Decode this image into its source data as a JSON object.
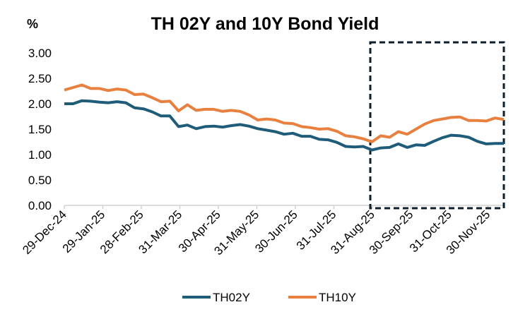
{
  "chart_data": {
    "type": "line",
    "title": "TH 02Y and 10Y Bond Yield",
    "ylabel": "%",
    "xlabel": "",
    "ylim": [
      0,
      3
    ],
    "yticks": [
      "0.00",
      "0.50",
      "1.00",
      "1.50",
      "2.00",
      "2.50",
      "3.00"
    ],
    "xtick_labels": [
      "29-Dec-24",
      "29-Jan-25",
      "28-Feb-25",
      "31-Mar-25",
      "30-Apr-25",
      "31-May-25",
      "30-Jun-25",
      "31-Jul-25",
      "31-Aug-25",
      "30-Sep-25",
      "31-Oct-25",
      "30-Nov-25"
    ],
    "grid": false,
    "legend_position": "bottom",
    "highlight_from": "31-Aug-25",
    "series": [
      {
        "name": "TH02Y",
        "color": "#1F5C7A",
        "values": [
          2.0,
          2.0,
          2.06,
          2.05,
          2.03,
          2.02,
          2.04,
          2.02,
          1.92,
          1.9,
          1.84,
          1.76,
          1.76,
          1.55,
          1.58,
          1.51,
          1.55,
          1.56,
          1.54,
          1.57,
          1.59,
          1.56,
          1.51,
          1.48,
          1.45,
          1.4,
          1.42,
          1.36,
          1.36,
          1.3,
          1.29,
          1.24,
          1.16,
          1.15,
          1.16,
          1.09,
          1.13,
          1.14,
          1.21,
          1.14,
          1.19,
          1.18,
          1.26,
          1.33,
          1.38,
          1.37,
          1.34,
          1.26,
          1.21,
          1.22,
          1.22
        ]
      },
      {
        "name": "TH10Y",
        "color": "#E8803F",
        "values": [
          2.27,
          2.32,
          2.37,
          2.3,
          2.3,
          2.26,
          2.29,
          2.27,
          2.18,
          2.19,
          2.12,
          2.04,
          2.05,
          1.86,
          1.98,
          1.87,
          1.89,
          1.89,
          1.85,
          1.87,
          1.85,
          1.78,
          1.68,
          1.7,
          1.68,
          1.62,
          1.61,
          1.55,
          1.53,
          1.5,
          1.51,
          1.46,
          1.37,
          1.35,
          1.31,
          1.25,
          1.37,
          1.34,
          1.45,
          1.4,
          1.5,
          1.6,
          1.67,
          1.7,
          1.73,
          1.74,
          1.67,
          1.67,
          1.66,
          1.72,
          1.69
        ]
      }
    ]
  }
}
